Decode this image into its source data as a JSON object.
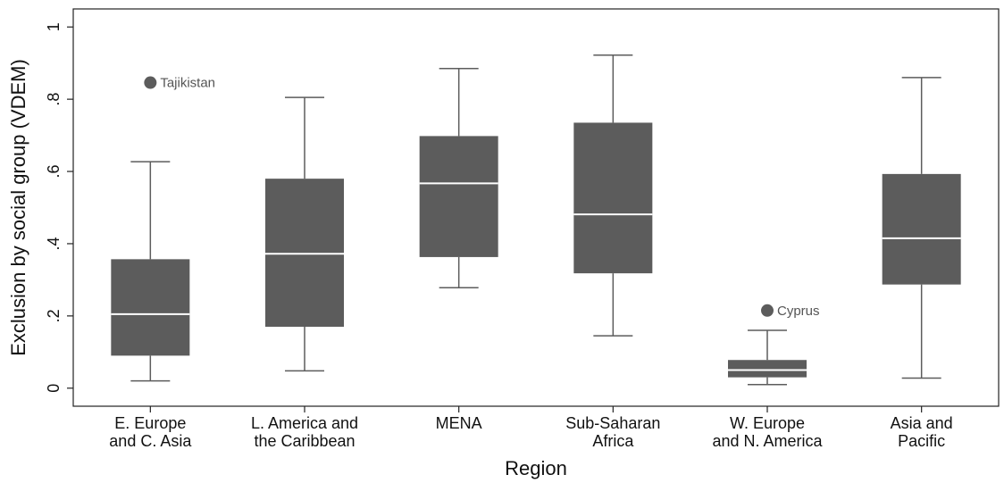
{
  "chart_data": {
    "type": "box",
    "xlabel": "Region",
    "ylabel": "Exclusion by social group (VDEM)",
    "ylim": [
      -0.05,
      1.05
    ],
    "yticks": [
      {
        "value": 0,
        "label": "0"
      },
      {
        "value": 0.2,
        "label": ".2"
      },
      {
        "value": 0.4,
        "label": ".4"
      },
      {
        "value": 0.6,
        "label": ".6"
      },
      {
        "value": 0.8,
        "label": ".8"
      },
      {
        "value": 1,
        "label": "1"
      }
    ],
    "grid": false,
    "box_color": "#5c5c5c",
    "median_color": "#ffffff",
    "boxes": [
      {
        "label_lines": [
          "E. Europe",
          "and C. Asia"
        ],
        "whisker_low": 0.02,
        "q1": 0.09,
        "median": 0.205,
        "q3": 0.357,
        "whisker_high": 0.627,
        "outliers": [
          {
            "value": 0.846,
            "label": "Tajikistan"
          }
        ]
      },
      {
        "label_lines": [
          "L. America and",
          "the Caribbean"
        ],
        "whisker_low": 0.048,
        "q1": 0.17,
        "median": 0.372,
        "q3": 0.58,
        "whisker_high": 0.805,
        "outliers": []
      },
      {
        "label_lines": [
          "MENA"
        ],
        "whisker_low": 0.278,
        "q1": 0.363,
        "median": 0.567,
        "q3": 0.698,
        "whisker_high": 0.885,
        "outliers": []
      },
      {
        "label_lines": [
          "Sub-Saharan",
          "Africa"
        ],
        "whisker_low": 0.145,
        "q1": 0.318,
        "median": 0.481,
        "q3": 0.735,
        "whisker_high": 0.922,
        "outliers": []
      },
      {
        "label_lines": [
          "W. Europe",
          "and N. America"
        ],
        "whisker_low": 0.01,
        "q1": 0.03,
        "median": 0.05,
        "q3": 0.078,
        "whisker_high": 0.16,
        "outliers": [
          {
            "value": 0.215,
            "label": "Cyprus"
          }
        ]
      },
      {
        "label_lines": [
          "Asia and",
          "Pacific"
        ],
        "whisker_low": 0.028,
        "q1": 0.287,
        "median": 0.415,
        "q3": 0.593,
        "whisker_high": 0.86,
        "outliers": []
      }
    ]
  }
}
